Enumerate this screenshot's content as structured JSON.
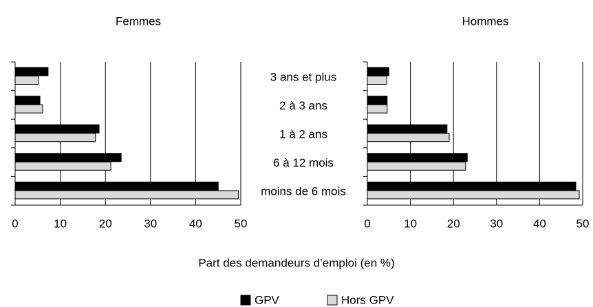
{
  "chart_data": {
    "type": "bar",
    "categories": [
      "3 ans et plus",
      "2 à 3 ans",
      "1 à 2 ans",
      "6 à 12 mois",
      "moins de 6 mois"
    ],
    "x_label": "Part des demandeurs d’emploi (en %)",
    "xlim": [
      0,
      50
    ],
    "xticks": [
      0,
      10,
      20,
      30,
      40,
      50
    ],
    "grid": true,
    "legend": [
      {
        "name": "GPV",
        "color": "#000000"
      },
      {
        "name": "Hors GPV",
        "color": "#d9d9d9"
      }
    ],
    "panels": [
      {
        "title": "Femmes",
        "series": [
          {
            "values": [
              7.3,
              5.5,
              18.6,
              23.5,
              45.0
            ]
          },
          {
            "values": [
              5.2,
              6.1,
              17.8,
              21.2,
              49.5
            ]
          }
        ]
      },
      {
        "title": "Hommes",
        "series": [
          {
            "values": [
              5.0,
              4.6,
              18.5,
              23.2,
              48.4
            ]
          },
          {
            "values": [
              4.5,
              4.6,
              19.0,
              22.8,
              49.2
            ]
          }
        ]
      }
    ]
  }
}
